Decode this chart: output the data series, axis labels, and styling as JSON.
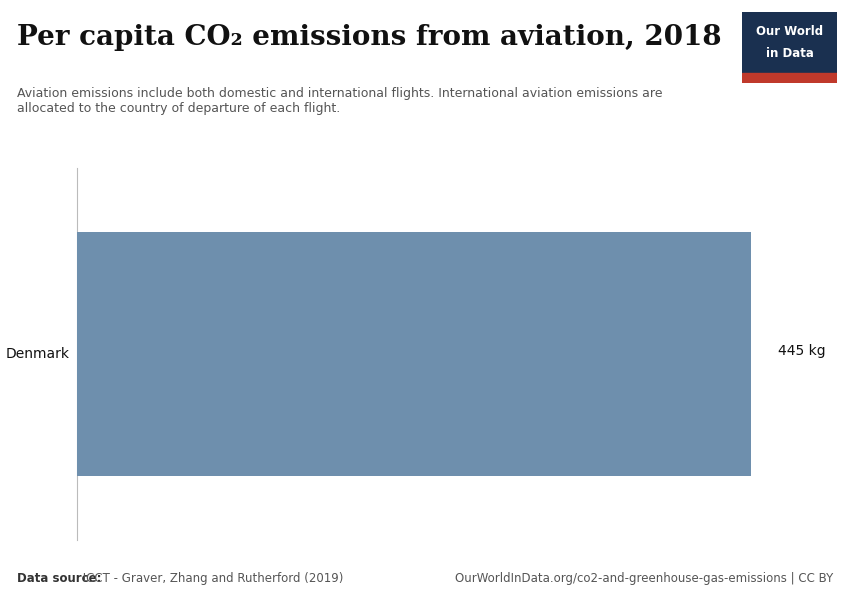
{
  "title": "Per capita CO₂ emissions from aviation, 2018",
  "subtitle": "Aviation emissions include both domestic and international flights. International aviation emissions are\nallocated to the country of departure of each flight.",
  "category": "Denmark",
  "value": 445,
  "value_label": "445 kg",
  "bar_color": "#6e8fad",
  "background_color": "#ffffff",
  "data_source_bold": "Data source:",
  "data_source_normal": " ICCT - Graver, Zhang and Rutherford (2019)",
  "url": "OurWorldInData.org/co2-and-greenhouse-gas-emissions | CC BY",
  "logo_bg": "#1a3050",
  "logo_red": "#c0392b",
  "logo_text_line1": "Our World",
  "logo_text_line2": "in Data",
  "title_fontsize": 20,
  "subtitle_fontsize": 9,
  "footer_fontsize": 8.5,
  "xlim_max": 460
}
